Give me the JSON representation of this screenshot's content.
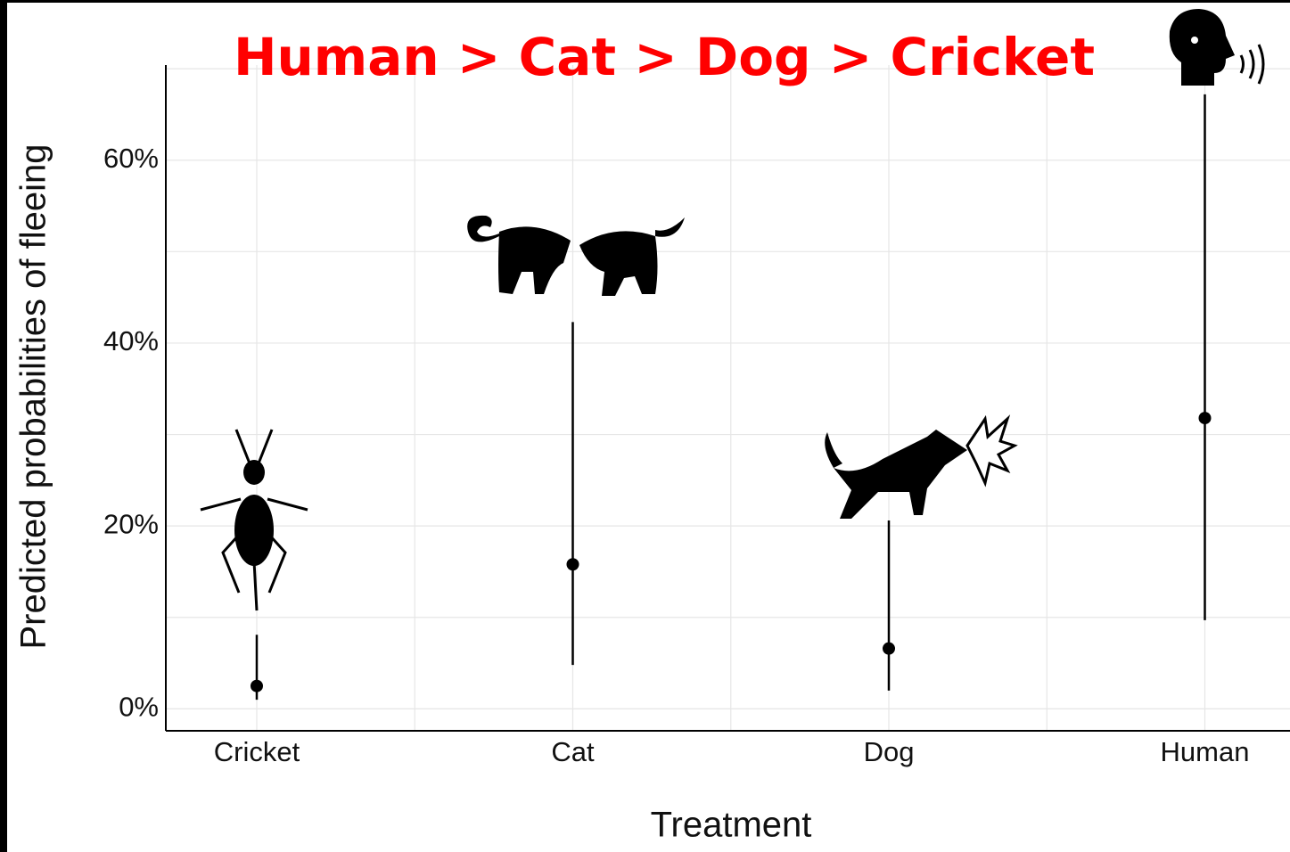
{
  "chart_data": {
    "type": "errorpoint",
    "title": "Human > Cat > Dog > Cricket",
    "xlabel": "Treatment",
    "ylabel": "Predicted probabilities of fleeing",
    "categories": [
      "Cricket",
      "Cat",
      "Dog",
      "Human"
    ],
    "values": [
      2.5,
      15.8,
      6.6,
      31.8
    ],
    "lower": [
      1.0,
      4.8,
      2.0,
      9.7
    ],
    "upper": [
      8.1,
      42.3,
      20.6,
      67.2
    ],
    "color": "#000000",
    "ylim": [
      -2.4,
      70.4
    ],
    "yticks": [
      {
        "value": 0,
        "label": "0%"
      },
      {
        "value": 20,
        "label": "20%"
      },
      {
        "value": 40,
        "label": "40%"
      },
      {
        "value": 60,
        "label": "60%"
      }
    ],
    "yminor": [
      10,
      30,
      50,
      70
    ],
    "grid": true
  }
}
